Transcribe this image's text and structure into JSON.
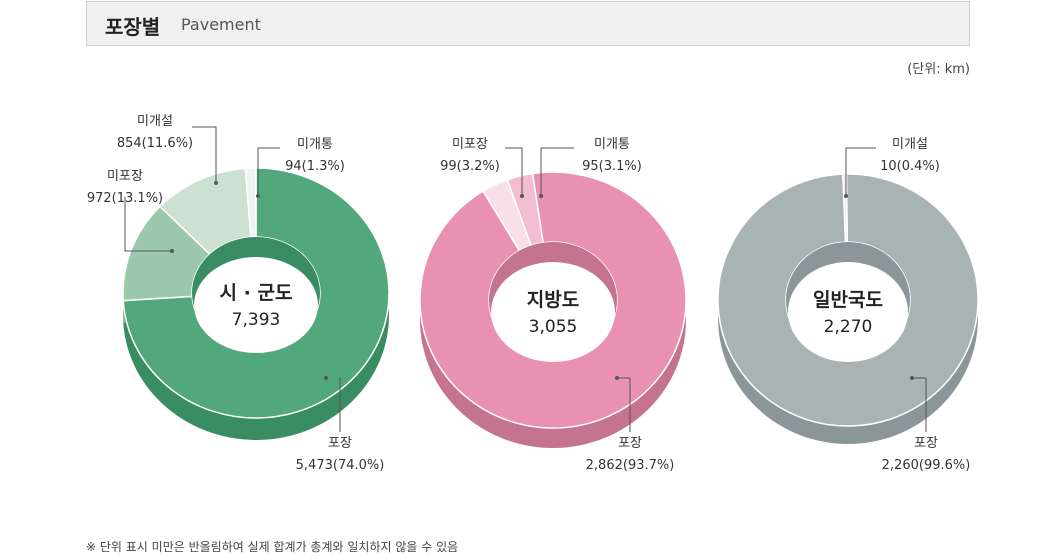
{
  "header": {
    "title": "포장별",
    "subtitle": "Pavement"
  },
  "unit_label": "(단위: km)",
  "footnote": "※ 단위 표시 미만은 반올림하여 실제 합계가 총계와 일치하지 않을 수 있음",
  "chart_data": [
    {
      "type": "pie",
      "name": "시 · 군도",
      "total": "7,393",
      "slices": [
        {
          "label": "포장",
          "value": 5473,
          "display": "5,473(74.0%)",
          "color": "#52a77c",
          "side": "#3a8c63"
        },
        {
          "label": "미포장",
          "value": 972,
          "display": "972(13.1%)",
          "color": "#9cc9ad",
          "side": "#7fb394"
        },
        {
          "label": "미개설",
          "value": 854,
          "display": "854(11.6%)",
          "color": "#cde1d3",
          "side": "#b2cdba"
        },
        {
          "label": "미개통",
          "value": 94,
          "display": "94(1.3%)",
          "color": "#eef5f0",
          "side": "#d3e3d7"
        }
      ]
    },
    {
      "type": "pie",
      "name": "지방도",
      "total": "3,055",
      "slices": [
        {
          "label": "포장",
          "value": 2862,
          "display": "2,862(93.7%)",
          "color": "#e891b3",
          "side": "#c4748f"
        },
        {
          "label": "미포장",
          "value": 99,
          "display": "99(3.2%)",
          "color": "#f8dfe8",
          "side": "#e0bccb"
        },
        {
          "label": "미개통",
          "value": 95,
          "display": "95(3.1%)",
          "color": "#f2bdd0",
          "side": "#d89fb5"
        }
      ]
    },
    {
      "type": "pie",
      "name": "일반국도",
      "total": "2,270",
      "slices": [
        {
          "label": "포장",
          "value": 2260,
          "display": "2,260(99.6%)",
          "color": "#a8b3b4",
          "side": "#8a9698"
        },
        {
          "label": "미개설",
          "value": 10,
          "display": "10(0.4%)",
          "color": "#e6eaea",
          "side": "#c9cfd0"
        }
      ]
    }
  ]
}
